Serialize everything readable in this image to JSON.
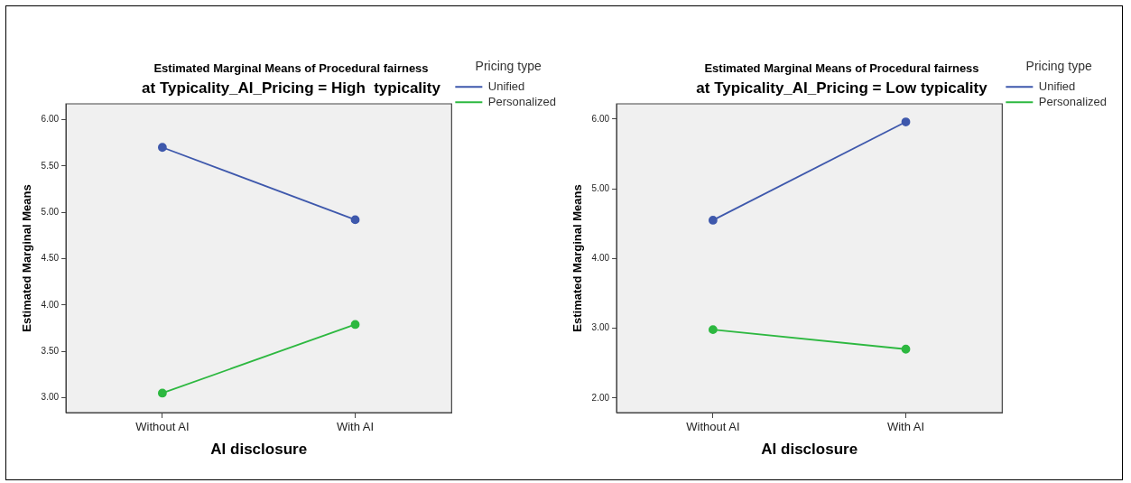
{
  "chart_data": [
    {
      "type": "line",
      "title": "Estimated Marginal Means of Procedural fairness",
      "subtitle": "at Typicality_AI_Pricing = High  typicality",
      "xlabel": "AI disclosure",
      "ylabel": "Estimated Marginal Means",
      "legend_title": "Pricing type",
      "categories": [
        "Without AI",
        "With AI"
      ],
      "series": [
        {
          "name": "Unified",
          "color": "#3e58ac",
          "values": [
            5.7,
            4.92
          ]
        },
        {
          "name": "Personalized",
          "color": "#2db840",
          "values": [
            3.05,
            3.79
          ]
        }
      ],
      "ylim": [
        2.84,
        6.17
      ],
      "yticks": [
        {
          "value": 3,
          "label": "3.00"
        },
        {
          "value": 3.5,
          "label": "3.50"
        },
        {
          "value": 4,
          "label": "4.00"
        },
        {
          "value": 4.5,
          "label": "4.50"
        },
        {
          "value": 5,
          "label": "5.00"
        },
        {
          "value": 5.5,
          "label": "5.50"
        },
        {
          "value": 6,
          "label": "6.00"
        }
      ],
      "legend": "right",
      "marker": "circle",
      "grid": false
    },
    {
      "type": "line",
      "title": "Estimated Marginal Means of Procedural fairness",
      "subtitle": "at Typicality_AI_Pricing = Low typicality",
      "xlabel": "AI disclosure",
      "ylabel": "Estimated Marginal Means",
      "legend_title": "Pricing type",
      "categories": [
        "Without AI",
        "With AI"
      ],
      "series": [
        {
          "name": "Unified",
          "color": "#3e58ac",
          "values": [
            4.55,
            5.96
          ]
        },
        {
          "name": "Personalized",
          "color": "#2db840",
          "values": [
            2.98,
            2.7
          ]
        }
      ],
      "ylim": [
        1.79,
        6.22
      ],
      "yticks": [
        {
          "value": 2,
          "label": "2.00"
        },
        {
          "value": 3,
          "label": "3.00"
        },
        {
          "value": 4,
          "label": "4.00"
        },
        {
          "value": 5,
          "label": "5.00"
        },
        {
          "value": 6,
          "label": "6.00"
        }
      ],
      "legend": "right",
      "marker": "circle",
      "grid": false
    }
  ]
}
